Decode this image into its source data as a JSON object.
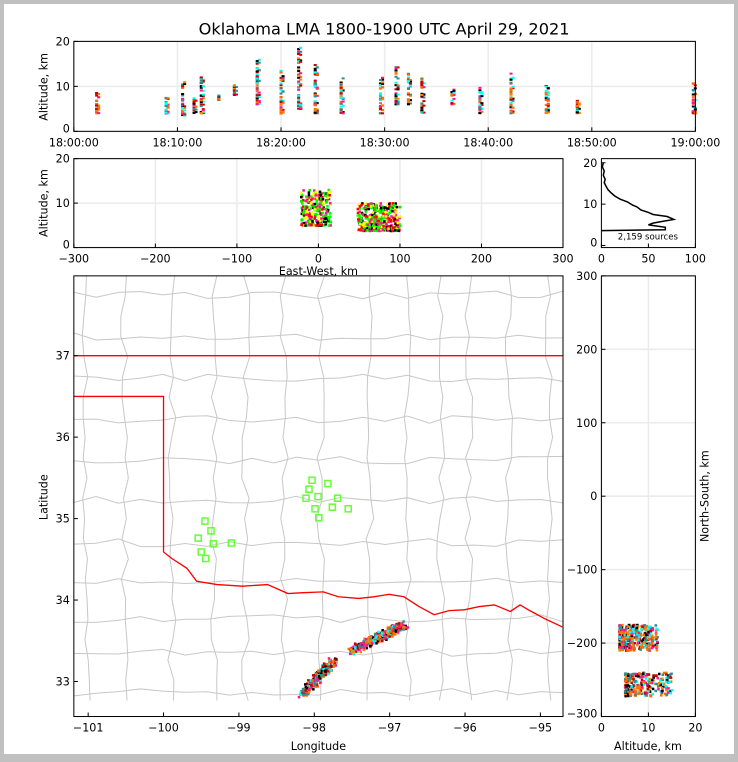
{
  "chart_data": [
    {
      "id": "time-height",
      "type": "scatter",
      "title": "Oklahoma LMA 1800-1900 UTC April 29, 2021",
      "ylabel": "Altitude, km",
      "xlabel": "",
      "ylim": [
        0,
        20
      ],
      "yticks": [
        "0",
        "10",
        "20"
      ],
      "xticks": [
        "18:00:00",
        "18:10:00",
        "18:20:00",
        "18:30:00",
        "18:40:00",
        "18:50:00",
        "19:00:00"
      ],
      "xlim_minutes": [
        0,
        60
      ],
      "flash_columns_minute_altmin_altmax": [
        [
          2.2,
          4,
          9
        ],
        [
          8.9,
          4,
          8
        ],
        [
          10.5,
          3.5,
          11
        ],
        [
          11.6,
          4,
          7.5
        ],
        [
          12.3,
          4,
          12.5
        ],
        [
          14,
          7,
          8
        ],
        [
          15.5,
          8,
          10.5
        ],
        [
          17.7,
          6,
          16
        ],
        [
          20,
          4,
          13.5
        ],
        [
          21.7,
          5,
          19
        ],
        [
          23.3,
          4,
          15
        ],
        [
          25.8,
          4,
          12
        ],
        [
          29.6,
          4,
          12
        ],
        [
          31.1,
          6,
          14.5
        ],
        [
          32.3,
          6,
          13
        ],
        [
          33.6,
          4,
          12
        ],
        [
          36.5,
          6,
          9.5
        ],
        [
          39.2,
          4,
          10
        ],
        [
          42.2,
          4,
          13
        ],
        [
          45.6,
          4,
          10.5
        ],
        [
          48.6,
          4,
          7.5
        ],
        [
          59.8,
          4,
          11
        ]
      ]
    },
    {
      "id": "ew-height",
      "type": "scatter",
      "xlabel": "East-West, km",
      "ylabel": "Altitude, km",
      "xlim": [
        -300,
        300
      ],
      "ylim": [
        0,
        20
      ],
      "xticks": [
        "−300",
        "−200",
        "−100",
        "0",
        "100",
        "200",
        "300"
      ],
      "yticks": [
        "0",
        "10",
        "20"
      ],
      "clusters_ew_km_alt_km": [
        {
          "ew": [
            -22,
            15
          ],
          "alt": [
            5,
            13
          ],
          "n": 260
        },
        {
          "ew": [
            48,
            100
          ],
          "alt": [
            3.8,
            10
          ],
          "n": 380
        }
      ]
    },
    {
      "id": "altitude-histogram",
      "type": "line",
      "xlim": [
        0,
        100
      ],
      "ylim": [
        0,
        20
      ],
      "xticks": [
        "0",
        "50",
        "100"
      ],
      "yticks": [
        "0",
        "10",
        "20"
      ],
      "annotation": "2,159 sources",
      "points_count_alt": [
        [
          0,
          3.6
        ],
        [
          68,
          3.8
        ],
        [
          68,
          4.4
        ],
        [
          50,
          5.0
        ],
        [
          55,
          5.4
        ],
        [
          62,
          5.7
        ],
        [
          77,
          6.3
        ],
        [
          70,
          7.0
        ],
        [
          55,
          7.5
        ],
        [
          50,
          8.0
        ],
        [
          42,
          8.6
        ],
        [
          38,
          9.3
        ],
        [
          33,
          9.8
        ],
        [
          28,
          10.5
        ],
        [
          20,
          11.2
        ],
        [
          14,
          12.0
        ],
        [
          10,
          12.8
        ],
        [
          7,
          13.5
        ],
        [
          5,
          14.3
        ],
        [
          3,
          15.2
        ],
        [
          4,
          16
        ],
        [
          2,
          17
        ],
        [
          3,
          18
        ],
        [
          1,
          19
        ],
        [
          2,
          20
        ]
      ]
    },
    {
      "id": "plan-view",
      "type": "scatter",
      "xlabel": "Longitude",
      "ylabel": "Latitude",
      "xlim": [
        -101.19,
        -94.7
      ],
      "ylim": [
        32.57,
        37.98
      ],
      "xticks": [
        "−101",
        "−100",
        "−99",
        "−98",
        "−97",
        "−96",
        "−95"
      ],
      "yticks": [
        "33",
        "34",
        "35",
        "36",
        "37"
      ],
      "stations_lon_lat": [
        [
          -98.03,
          35.47
        ],
        [
          -97.82,
          35.43
        ],
        [
          -98.07,
          35.36
        ],
        [
          -97.95,
          35.27
        ],
        [
          -98.11,
          35.25
        ],
        [
          -97.69,
          35.25
        ],
        [
          -97.76,
          35.14
        ],
        [
          -97.99,
          35.12
        ],
        [
          -97.55,
          35.12
        ],
        [
          -97.94,
          35.01
        ],
        [
          -99.45,
          34.97
        ],
        [
          -99.37,
          34.85
        ],
        [
          -99.54,
          34.76
        ],
        [
          -99.34,
          34.69
        ],
        [
          -99.1,
          34.7
        ],
        [
          -99.5,
          34.59
        ],
        [
          -99.44,
          34.51
        ]
      ],
      "state_border_lon_lat": [
        [
          -101.19,
          36.5
        ],
        [
          -100.0,
          36.5
        ],
        [
          -100.0,
          34.59
        ],
        [
          -99.89,
          34.51
        ],
        [
          -99.69,
          34.39
        ],
        [
          -99.56,
          34.23
        ],
        [
          -99.29,
          34.19
        ],
        [
          -98.95,
          34.17
        ],
        [
          -98.62,
          34.19
        ],
        [
          -98.35,
          34.08
        ],
        [
          -98.15,
          34.09
        ],
        [
          -97.88,
          34.1
        ],
        [
          -97.68,
          34.04
        ],
        [
          -97.41,
          34.02
        ],
        [
          -97.21,
          34.04
        ],
        [
          -97.01,
          34.07
        ],
        [
          -96.81,
          34.04
        ],
        [
          -96.61,
          33.92
        ],
        [
          -96.41,
          33.82
        ],
        [
          -96.21,
          33.87
        ],
        [
          -96.01,
          33.88
        ],
        [
          -95.81,
          33.92
        ],
        [
          -95.61,
          33.94
        ],
        [
          -95.4,
          33.86
        ],
        [
          -95.27,
          33.94
        ],
        [
          -95.14,
          33.87
        ],
        [
          -94.94,
          33.77
        ],
        [
          -94.71,
          33.67
        ]
      ],
      "north_border_lat": 37.0,
      "source_tracks_lon_lat": [
        {
          "from": [
            -98.15,
            32.85
          ],
          "to": [
            -97.75,
            33.25
          ],
          "n": 260
        },
        {
          "from": [
            -97.5,
            33.38
          ],
          "to": [
            -96.8,
            33.7
          ],
          "n": 380
        }
      ]
    },
    {
      "id": "ns-height",
      "type": "scatter",
      "xlabel": "Altitude, km",
      "ylabel": "North-South, km",
      "xlim": [
        0,
        20
      ],
      "ylim": [
        -300,
        300
      ],
      "xticks": [
        "0",
        "10",
        "20"
      ],
      "yticks": [
        "−300",
        "−200",
        "−100",
        "0",
        "100",
        "200",
        "300"
      ],
      "clusters_alt_km_ns_km": [
        {
          "alt": [
            3.8,
            12
          ],
          "ns": [
            -210,
            -175
          ],
          "n": 380
        },
        {
          "alt": [
            5,
            15
          ],
          "ns": [
            -272,
            -240
          ],
          "n": 260
        }
      ]
    }
  ]
}
